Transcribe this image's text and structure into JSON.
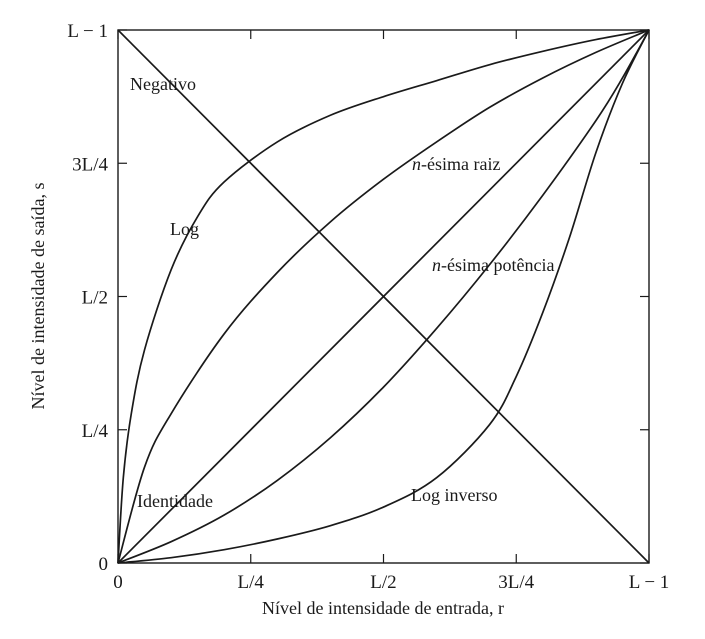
{
  "chart_data": {
    "type": "line",
    "title": "",
    "xlabel": "Nível de intensidade de entrada, r",
    "ylabel": "Nível de intensidade de saída, s",
    "xlim": [
      0,
      1
    ],
    "ylim": [
      0,
      1
    ],
    "grid": false,
    "x_ticks": [
      {
        "value": 0,
        "label": "0"
      },
      {
        "value": 0.25,
        "label": "L/4"
      },
      {
        "value": 0.5,
        "label": "L/2"
      },
      {
        "value": 0.75,
        "label": "3L/4"
      },
      {
        "value": 1,
        "label": "L − 1"
      }
    ],
    "y_ticks": [
      {
        "value": 0,
        "label": "0"
      },
      {
        "value": 0.25,
        "label": "L/4"
      },
      {
        "value": 0.5,
        "label": "L/2"
      },
      {
        "value": 0.75,
        "label": "3L/4"
      },
      {
        "value": 1,
        "label": "L − 1"
      }
    ],
    "series": [
      {
        "name": "Negativo",
        "x": [
          0,
          1
        ],
        "y": [
          1,
          0
        ]
      },
      {
        "name": "Identidade",
        "x": [
          0,
          1
        ],
        "y": [
          0,
          1
        ]
      },
      {
        "name": "Log",
        "x": [
          0,
          0.01,
          0.025,
          0.05,
          0.1,
          0.15,
          0.2,
          0.3,
          0.4,
          0.5,
          0.6,
          0.7,
          0.8,
          0.9,
          1
        ],
        "y": [
          0,
          0.16,
          0.28,
          0.4,
          0.55,
          0.65,
          0.715,
          0.79,
          0.84,
          0.875,
          0.905,
          0.935,
          0.96,
          0.982,
          1
        ]
      },
      {
        "name": "n-ésima raiz",
        "x": [
          0,
          0.05,
          0.1,
          0.2,
          0.3,
          0.4,
          0.5,
          0.6,
          0.7,
          0.8,
          0.9,
          1
        ],
        "y": [
          0,
          0.18,
          0.28,
          0.43,
          0.545,
          0.64,
          0.72,
          0.79,
          0.855,
          0.91,
          0.958,
          1
        ]
      },
      {
        "name": "n-ésima potência",
        "x": [
          0,
          0.1,
          0.2,
          0.3,
          0.4,
          0.5,
          0.6,
          0.7,
          0.8,
          0.9,
          0.95,
          1
        ],
        "y": [
          0,
          0.04,
          0.09,
          0.155,
          0.235,
          0.33,
          0.44,
          0.56,
          0.69,
          0.83,
          0.91,
          1
        ]
      },
      {
        "name": "Log inverso",
        "x": [
          0,
          0.1,
          0.2,
          0.3,
          0.4,
          0.5,
          0.6,
          0.7,
          0.75,
          0.8,
          0.85,
          0.9,
          0.95,
          1
        ],
        "y": [
          0,
          0.01,
          0.025,
          0.045,
          0.07,
          0.105,
          0.16,
          0.26,
          0.35,
          0.47,
          0.61,
          0.77,
          0.9,
          1
        ]
      }
    ],
    "annotations": [
      {
        "text": "Negativo",
        "series": "Negativo"
      },
      {
        "text": "Log",
        "series": "Log"
      },
      {
        "text": "n-ésima raiz",
        "series": "n-ésima raiz"
      },
      {
        "text": "n-ésima potência",
        "series": "n-ésima potência"
      },
      {
        "text": "Identidade",
        "series": "Identidade"
      },
      {
        "text": "Log inverso",
        "series": "Log inverso"
      }
    ]
  }
}
